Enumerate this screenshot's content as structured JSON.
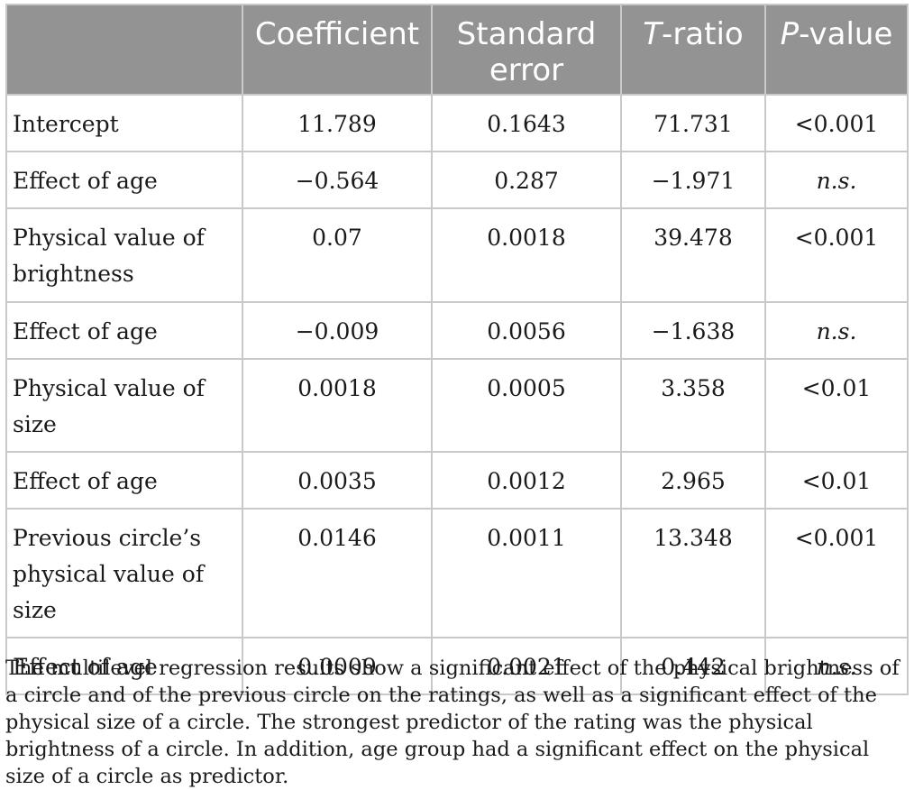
{
  "table": {
    "headers": {
      "stub": "",
      "coefficient": "Coefficient",
      "standard_error": "Standard error",
      "t_ratio_italic": "T",
      "t_ratio_rest": "-ratio",
      "p_value_italic": "P",
      "p_value_rest": "-value"
    },
    "rows": [
      {
        "label": "Intercept",
        "coefficient": "11.789",
        "standard_error": "0.1643",
        "t_ratio": "71.731",
        "p_value": "<0.001"
      },
      {
        "label": "Effect of age",
        "coefficient": "−0.564",
        "standard_error": "0.287",
        "t_ratio": "−1.971",
        "p_value": "n.s."
      },
      {
        "label": "Physical value of brightness",
        "coefficient": "0.07",
        "standard_error": "0.0018",
        "t_ratio": "39.478",
        "p_value": "<0.001"
      },
      {
        "label": "Effect of age",
        "coefficient": "−0.009",
        "standard_error": "0.0056",
        "t_ratio": "−1.638",
        "p_value": "n.s."
      },
      {
        "label": "Physical value of size",
        "coefficient": "0.0018",
        "standard_error": "0.0005",
        "t_ratio": "3.358",
        "p_value": "<0.01"
      },
      {
        "label": "Effect of age",
        "coefficient": "0.0035",
        "standard_error": "0.0012",
        "t_ratio": "2.965",
        "p_value": "<0.01"
      },
      {
        "label": "Previous circle’s physical value of size",
        "coefficient": "0.0146",
        "standard_error": "0.0011",
        "t_ratio": "13.348",
        "p_value": "<0.001"
      },
      {
        "label": "Effect of age",
        "coefficient": "0.0009",
        "standard_error": "0.0021",
        "t_ratio": "0.442",
        "p_value": "n.s."
      }
    ]
  },
  "note": "The multilevel regression results show a significant effect of the physical brightness of a circle and of the previous circle on the ratings, as well as a significant effect of the physical size of a circle. The strongest predictor of the rating was the physical brightness of a circle. In addition, age group had a significant effect on the physical size of a circle as predictor."
}
